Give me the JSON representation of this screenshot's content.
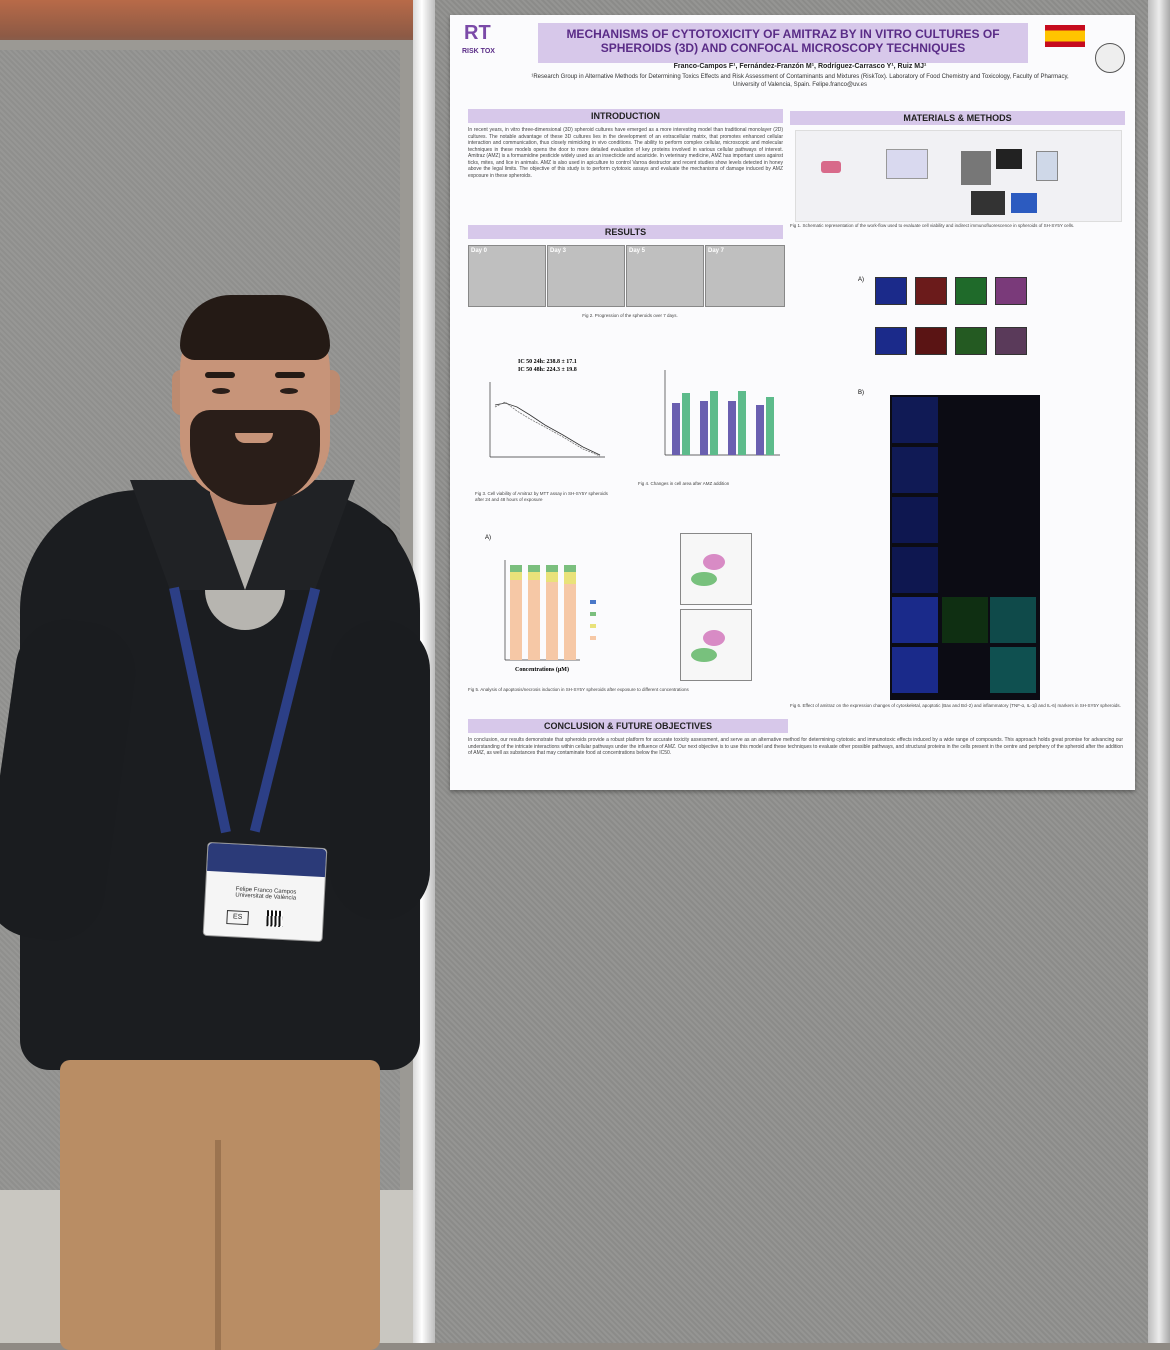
{
  "poster": {
    "title": "MECHANISMS OF CYTOTOXICITY OF AMITRAZ BY IN VITRO CULTURES OF SPHEROIDS (3D) AND CONFOCAL MICROSCOPY TECHNIQUES",
    "logo_text": "RISK TOX",
    "authors": "Franco-Campos F¹, Fernández-Franzón M¹, Rodríguez-Carrasco Y¹, Ruiz MJ¹",
    "affiliation": "¹Research Group in Alternative Methods for Determining Toxics Effects and Risk Assessment of Contaminants and Mixtures (RiskTox). Laboratory of Food Chemistry and Toxicology, Faculty of Pharmacy, University of Valencia, Spain. Felipe.franco@uv.es",
    "sections": {
      "introduction": "INTRODUCTION",
      "materials": "MATERIALS & METHODS",
      "results": "RESULTS",
      "conclusion": "CONCLUSION & FUTURE OBJECTIVES"
    },
    "intro_text": "In recent years, in vitro three-dimensional (3D) spheroid cultures have emerged as a more interesting model than traditional monolayer (2D) cultures. The notable advantage of these 3D cultures lies in the development of an extracellular matrix, that promotes enhanced cellular interaction and communication, thus closely mimicking in vivo conditions. The ability to perform complex cellular, microscopic and molecular techniques in these models opens the door to more detailed evaluation of key proteins involved in various cellular pathways of interest. Amitraz (AMZ) is a formamidine pesticide widely used as an insecticide and acaricide. In veterinary medicine, AMZ has important uses against ticks, mites, and lice in animals. AMZ is also used in apiculture to control Varroa destructor and recent studies show levels detected in honey above the legal limits. The objective of this study is to perform cytotoxic assays and evaluate the mechanisms of damage induced by AMZ exposure in these spheroids.",
    "days": [
      "Day 0",
      "Day 3",
      "Day 5",
      "Day 7"
    ],
    "fig2_caption": "Fig 2. Progression of the spheroids over 7 days.",
    "ic50_line1": "IC 50 24h: 238.8 ± 17.1",
    "ic50_line2": "IC 50 48h: 224.3 ± 19.8",
    "fig3_caption": "Fig 3. Cell viability of Amitraz by MTT assay in SH-SY5Y spheroids after 24 and 48 hours of exposure",
    "fig4_caption": "Fig 4. Changes in cell area after AMZ addition",
    "fig5_caption": "Fig 5. Analysis of apoptosis/necrosis induction in SH-SY5Y spheroids after exposure to different concentrations",
    "fig1_caption": "Fig 1. Schematic representation of the work-flow used to evaluate cell viability and indirect immunofluorescence in spheroids of SH-SY5Y cells.",
    "fig6_caption": "Fig 6. Effect of amitraz on the expression changes of cytoskeletal, apoptotic (Bax and Bcl-2) and inflammatory (TNF-α, IL-1β and IL-6) markers in SH-SY5Y spheroids.",
    "conc_axis": "Concentrations (µM)",
    "conclusion_text": "In conclusion, our results demonstrate that spheroids provide a robust platform for accurate toxicity assessment, and serve as an alternative method for determining cytotoxic and immunotoxic effects induced by a wide range of compounds. This approach holds great promise for advancing our understanding of the intricate interactions within cellular pathways under the influence of AMZ. Our next objective is to use this model and these techniques to evaluate other possible pathways, and structural proteins in the cells present in the centre and periphery of the spheroid after the addition of AMZ, as well as substances that may contaminate food at concentrations below the IC50.",
    "panel_a": "A)",
    "panel_b": "B)"
  },
  "badge": {
    "name": "Felipe Franco Campos",
    "org": "Universitat de València",
    "lang": "ES"
  }
}
